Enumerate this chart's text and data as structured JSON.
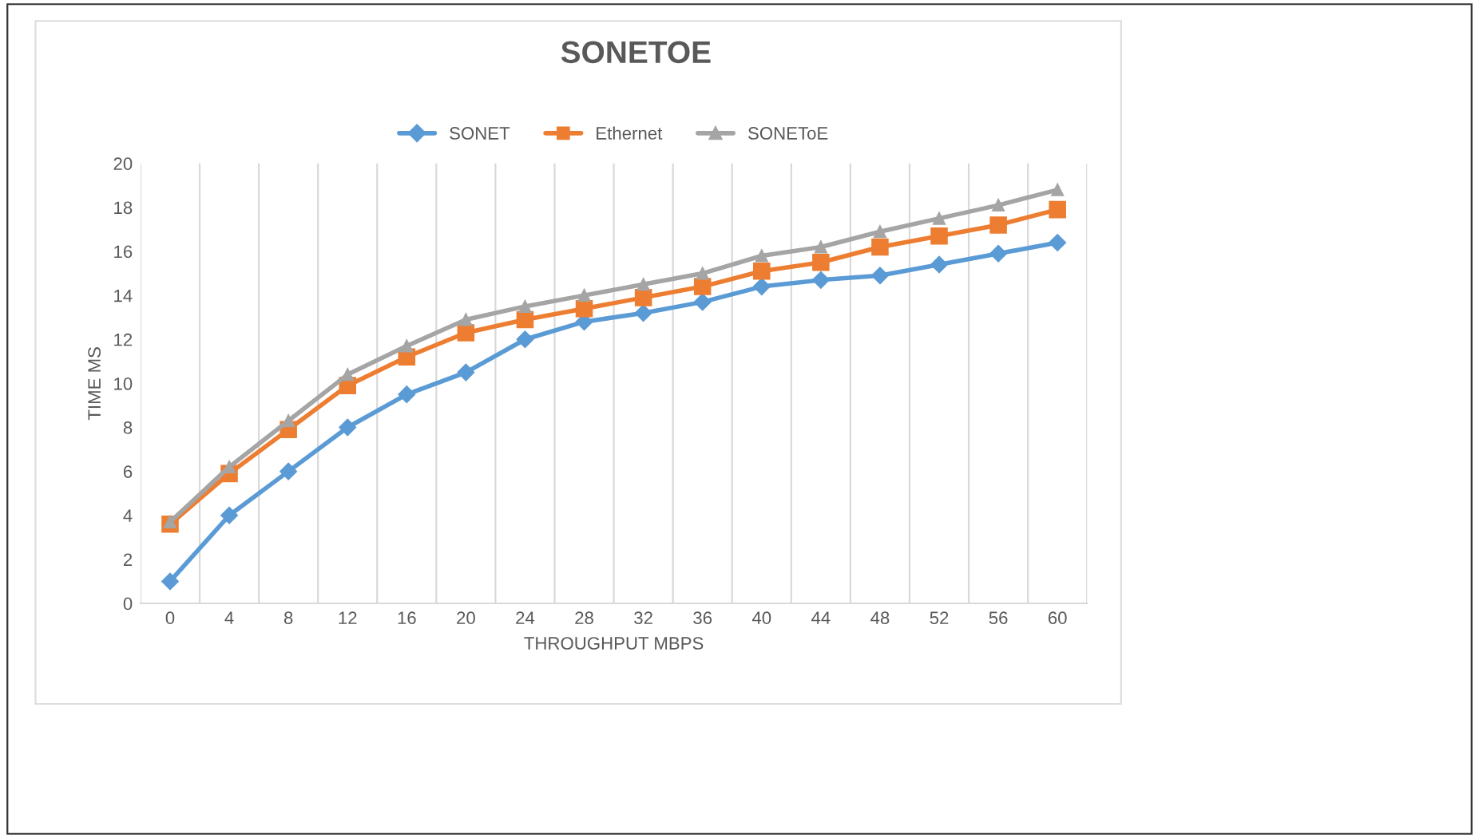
{
  "chart_data": {
    "type": "line",
    "title": "SONETOE",
    "xlabel": "THROUGHPUT MBPS",
    "ylabel": "TIME MS",
    "categories": [
      "0",
      "4",
      "8",
      "12",
      "16",
      "20",
      "24",
      "28",
      "32",
      "36",
      "40",
      "44",
      "48",
      "52",
      "56",
      "60"
    ],
    "series": [
      {
        "name": "SONET",
        "color": "#5b9bd5",
        "marker": "diamond",
        "values": [
          1,
          4,
          6,
          8,
          9.5,
          10.5,
          12,
          12.8,
          13.2,
          13.7,
          14.4,
          14.7,
          14.9,
          15.4,
          15.9,
          16.4
        ]
      },
      {
        "name": "Ethernet",
        "color": "#ed7d31",
        "marker": "square",
        "values": [
          3.6,
          5.9,
          7.9,
          9.9,
          11.2,
          12.3,
          12.9,
          13.4,
          13.9,
          14.4,
          15.1,
          15.5,
          16.2,
          16.7,
          17.2,
          17.9
        ]
      },
      {
        "name": "SONEToE",
        "color": "#a5a5a5",
        "marker": "triangle",
        "values": [
          3.7,
          6.2,
          8.3,
          10.4,
          11.7,
          12.9,
          13.5,
          14.0,
          14.5,
          15.0,
          15.8,
          16.2,
          16.9,
          17.5,
          18.1,
          18.8
        ]
      }
    ],
    "ylim": [
      0,
      20
    ],
    "yticks": [
      0,
      2,
      4,
      6,
      8,
      10,
      12,
      14,
      16,
      18,
      20
    ],
    "grid": "x",
    "legend": "top",
    "line_style": "solid"
  }
}
